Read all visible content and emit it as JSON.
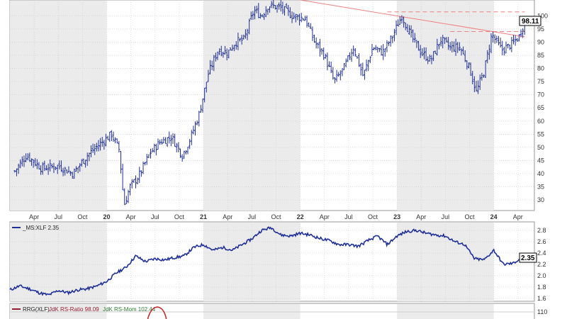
{
  "chart_data": [
    {
      "type": "bar",
      "subtype": "ohlc-price",
      "title": "",
      "xlabel": "",
      "ylabel": "",
      "ylim": [
        26,
        106
      ],
      "y_ticks": [
        30,
        35,
        40,
        45,
        50,
        55,
        60,
        65,
        70,
        75,
        80,
        85,
        90,
        95,
        100
      ],
      "x_ticks": [
        {
          "label": "Apr",
          "t": 2019.25
        },
        {
          "label": "Jul",
          "t": 2019.5
        },
        {
          "label": "Oct",
          "t": 2019.75
        },
        {
          "label": "20",
          "t": 2020.0
        },
        {
          "label": "Apr",
          "t": 2020.25
        },
        {
          "label": "Jul",
          "t": 2020.5
        },
        {
          "label": "Oct",
          "t": 2020.75
        },
        {
          "label": "21",
          "t": 2021.0
        },
        {
          "label": "Apr",
          "t": 2021.25
        },
        {
          "label": "Jul",
          "t": 2021.5
        },
        {
          "label": "Oct",
          "t": 2021.75
        },
        {
          "label": "22",
          "t": 2022.0
        },
        {
          "label": "Apr",
          "t": 2022.25
        },
        {
          "label": "Jul",
          "t": 2022.5
        },
        {
          "label": "Oct",
          "t": 2022.75
        },
        {
          "label": "23",
          "t": 2023.0
        },
        {
          "label": "Apr",
          "t": 2023.25
        },
        {
          "label": "Jul",
          "t": 2023.5
        },
        {
          "label": "Oct",
          "t": 2023.75
        },
        {
          "label": "24",
          "t": 2024.0
        },
        {
          "label": "Apr",
          "t": 2024.25
        }
      ],
      "series_path": {
        "t": [
          2019.05,
          2019.17,
          2019.33,
          2019.5,
          2019.65,
          2019.8,
          2019.92,
          2020.05,
          2020.13,
          2020.18,
          2020.24,
          2020.33,
          2020.45,
          2020.55,
          2020.67,
          2020.78,
          2020.85,
          2020.95,
          2021.05,
          2021.15,
          2021.25,
          2021.33,
          2021.42,
          2021.52,
          2021.6,
          2021.67,
          2021.8,
          2021.92,
          2022.05,
          2022.15,
          2022.25,
          2022.35,
          2022.45,
          2022.55,
          2022.65,
          2022.75,
          2022.85,
          2022.95,
          2023.05,
          2023.15,
          2023.25,
          2023.35,
          2023.45,
          2023.55,
          2023.65,
          2023.75,
          2023.82,
          2023.9,
          2023.98,
          2024.08,
          2024.18,
          2024.26,
          2024.32
        ],
        "price": [
          41,
          47,
          42,
          43,
          40,
          47,
          51,
          55,
          49,
          28,
          35,
          39,
          48,
          52,
          54,
          47,
          52,
          62,
          78,
          87,
          86,
          90,
          91,
          102,
          100,
          104,
          103,
          100,
          99,
          90,
          85,
          75,
          80,
          88,
          77,
          88,
          86,
          92,
          100,
          92,
          86,
          83,
          91,
          88,
          88,
          80,
          71,
          79,
          93,
          87,
          89,
          92,
          98
        ]
      },
      "last_value_label": "98.11",
      "trendlines": [
        {
          "name": "falling",
          "t": [
            2022.0,
            2024.32
          ],
          "price": [
            106,
            92
          ]
        },
        {
          "name": "upper",
          "t": [
            2022.9,
            2024.32
          ],
          "price": [
            101.5,
            101.5
          ]
        },
        {
          "name": "lower",
          "t": [
            2023.55,
            2024.32
          ],
          "price": [
            94,
            94
          ]
        }
      ],
      "grid": true,
      "shaded_years": [
        2019,
        2021,
        2023
      ]
    },
    {
      "type": "line",
      "legend": "_MS:XLF 2.35",
      "ylim": [
        1.55,
        2.95
      ],
      "y_ticks": [
        1.6,
        1.8,
        2.0,
        2.2,
        2.4,
        2.6,
        2.8
      ],
      "last_value_label": "2.35",
      "series_path": {
        "t": [
          2019.0,
          2019.1,
          2019.2,
          2019.3,
          2019.4,
          2019.5,
          2019.6,
          2019.7,
          2019.8,
          2019.9,
          2020.0,
          2020.1,
          2020.2,
          2020.3,
          2020.4,
          2020.5,
          2020.6,
          2020.7,
          2020.8,
          2020.9,
          2021.0,
          2021.1,
          2021.2,
          2021.3,
          2021.4,
          2021.5,
          2021.6,
          2021.7,
          2021.8,
          2021.9,
          2022.0,
          2022.1,
          2022.2,
          2022.3,
          2022.4,
          2022.5,
          2022.6,
          2022.7,
          2022.8,
          2022.9,
          2023.0,
          2023.1,
          2023.2,
          2023.3,
          2023.4,
          2023.5,
          2023.6,
          2023.7,
          2023.8,
          2023.9,
          2024.0,
          2024.1,
          2024.2,
          2024.32
        ],
        "value": [
          1.75,
          1.82,
          1.77,
          1.7,
          1.66,
          1.74,
          1.7,
          1.75,
          1.77,
          1.82,
          1.9,
          2.05,
          2.15,
          2.35,
          2.25,
          2.3,
          2.28,
          2.32,
          2.35,
          2.5,
          2.55,
          2.45,
          2.5,
          2.45,
          2.55,
          2.65,
          2.8,
          2.85,
          2.72,
          2.7,
          2.75,
          2.72,
          2.66,
          2.62,
          2.55,
          2.55,
          2.52,
          2.62,
          2.7,
          2.55,
          2.7,
          2.78,
          2.8,
          2.75,
          2.72,
          2.7,
          2.6,
          2.55,
          2.3,
          2.28,
          2.45,
          2.2,
          2.22,
          2.35
        ]
      },
      "grid": true
    },
    {
      "type": "line",
      "legend": {
        "name": "RRG(XLF)",
        "ratio_label": "JdK RS-Ratio 98.09",
        "momentum_label": "JdK RS-Mom 102.44"
      },
      "y_ticks": [
        110.0
      ],
      "grid": true
    }
  ],
  "colors": {
    "price_bars": "#1f2f9a",
    "line": "#1f2f9a",
    "trend": "#f08080",
    "ratio_legend": "#9b1b30",
    "momentum_legend": "#2e7d32",
    "shade": "#ebebeb",
    "grid": "#d0d0d0",
    "circle": "#c62828"
  }
}
